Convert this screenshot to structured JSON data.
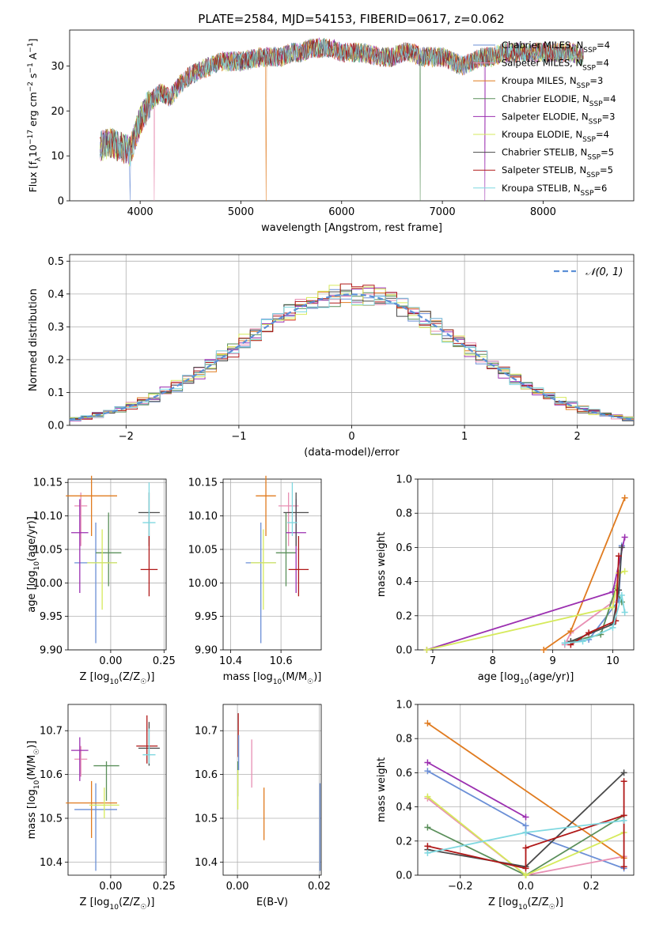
{
  "title": "PLATE=2584, MJD=54153, FIBERID=0617, z=0.062",
  "colors": {
    "c1": "#6b8fd6",
    "c2": "#e88fb3",
    "c3": "#e07b1f",
    "c4": "#5a8f5a",
    "c5": "#9b2fb0",
    "c6": "#d6ea5c",
    "c7": "#4a4a4a",
    "c8": "#b01818",
    "c9": "#7fd8e0",
    "gauss": "#5b8fd6"
  },
  "chart_data": [
    {
      "id": "spectrum",
      "type": "line",
      "xlabel": "wavelength [Angstrom, rest frame]",
      "ylabel": "Flux [f_λ 10^-17 erg cm^-2 s^-1 A^-1]",
      "xlim": [
        3300,
        8900
      ],
      "ylim": [
        0,
        38
      ],
      "xticks": [
        4000,
        5000,
        6000,
        7000,
        8000
      ],
      "yticks": [
        0,
        10,
        20,
        30
      ],
      "grid": false,
      "legend_position": "top-right",
      "continuum": {
        "x": [
          3600,
          3700,
          3800,
          3900,
          4000,
          4100,
          4200,
          4300,
          4400,
          4500,
          4600,
          4700,
          4800,
          4900,
          5000,
          5100,
          5200,
          5300,
          5400,
          5500,
          5600,
          5700,
          5800,
          5900,
          6000,
          6100,
          6200,
          6300,
          6400,
          6500,
          6600,
          6700,
          6800,
          6900,
          7000,
          7100,
          7200,
          7300,
          7400,
          7500,
          7600,
          7700,
          7800,
          7900,
          8000,
          8100,
          8200,
          8300,
          8400
        ],
        "y": [
          12,
          13,
          12,
          11,
          18,
          22,
          24,
          23,
          26,
          28,
          29,
          30,
          31,
          31,
          31,
          31.5,
          32,
          32,
          32,
          33,
          33,
          34,
          34,
          34,
          33,
          33,
          33,
          32.5,
          32,
          32,
          33,
          33,
          32,
          32,
          32,
          31,
          30,
          31,
          32,
          32,
          33,
          33,
          33,
          33,
          33,
          33,
          33,
          33,
          32
        ]
      },
      "drops": [
        {
          "x": 3900,
          "y": 0
        },
        {
          "x": 4140,
          "y": 0
        },
        {
          "x": 5250,
          "y": 0
        },
        {
          "x": 6780,
          "y": 0
        },
        {
          "x": 7420,
          "y": 0
        }
      ],
      "series": [
        {
          "name": "Chabrier MILES, N_SSP=4",
          "color_key": "c1"
        },
        {
          "name": "Salpeter MILES, N_SSP=4",
          "color_key": "c2"
        },
        {
          "name": "Kroupa MILES, N_SSP=3",
          "color_key": "c3"
        },
        {
          "name": "Chabrier ELODIE, N_SSP=4",
          "color_key": "c4"
        },
        {
          "name": "Salpeter ELODIE, N_SSP=3",
          "color_key": "c5"
        },
        {
          "name": "Kroupa ELODIE, N_SSP=4",
          "color_key": "c6"
        },
        {
          "name": "Chabrier STELIB, N_SSP=5",
          "color_key": "c7"
        },
        {
          "name": "Salpeter STELIB, N_SSP=5",
          "color_key": "c8"
        },
        {
          "name": "Kroupa STELIB, N_SSP=6",
          "color_key": "c9"
        }
      ]
    },
    {
      "id": "residuals",
      "type": "line",
      "xlabel": "(data-model)/error",
      "ylabel": "Normed distribution",
      "xlim": [
        -2.5,
        2.5
      ],
      "ylim": [
        0,
        0.52
      ],
      "xticks": [
        -2,
        -1,
        0,
        1,
        2
      ],
      "yticks": [
        0.0,
        0.1,
        0.2,
        0.3,
        0.4,
        0.5
      ],
      "grid": true,
      "legend_position": "top-right",
      "gauss_label": "𝒩(0, 1)",
      "bin_width": 0.1,
      "bin_start": -2.5
    },
    {
      "id": "age_vs_Z",
      "type": "scatter",
      "xlabel": "Z [log10(Z/Z☉)]",
      "ylabel": "age [log10(age/yr)]",
      "xlim": [
        -0.2,
        0.26
      ],
      "ylim": [
        9.9,
        10.155
      ],
      "xticks": [
        -0.25,
        0.0,
        0.25
      ],
      "yticks": [
        9.9,
        9.95,
        10.0,
        10.05,
        10.1,
        10.15
      ],
      "grid": true,
      "points": [
        {
          "color_key": "c1",
          "x": -0.07,
          "xerr": 0.1,
          "y": 10.03,
          "yerr": [
            0.12,
            0.06
          ]
        },
        {
          "color_key": "c2",
          "x": -0.14,
          "xerr": 0.03,
          "y": 10.115,
          "yerr": [
            0.06,
            0.02
          ]
        },
        {
          "color_key": "c3",
          "x": -0.09,
          "xerr": 0.12,
          "y": 10.13,
          "yerr": [
            0.06,
            0.03
          ]
        },
        {
          "color_key": "c4",
          "x": -0.01,
          "xerr": 0.06,
          "y": 10.045,
          "yerr": [
            0.05,
            0.06
          ]
        },
        {
          "color_key": "c5",
          "x": -0.145,
          "xerr": 0.04,
          "y": 10.075,
          "yerr": [
            0.09,
            0.05
          ]
        },
        {
          "color_key": "c6",
          "x": -0.04,
          "xerr": 0.07,
          "y": 10.03,
          "yerr": [
            0.07,
            0.05
          ]
        },
        {
          "color_key": "c7",
          "x": 0.18,
          "xerr": 0.05,
          "y": 10.105,
          "yerr": [
            0.05,
            0.03
          ]
        },
        {
          "color_key": "c8",
          "x": 0.18,
          "xerr": 0.04,
          "y": 10.02,
          "yerr": [
            0.04,
            0.05
          ]
        },
        {
          "color_key": "c9",
          "x": 0.18,
          "xerr": 0.03,
          "y": 10.09,
          "yerr": [
            0.02,
            0.06
          ]
        }
      ]
    },
    {
      "id": "age_vs_mass",
      "type": "scatter",
      "xlabel": "mass [log10(M/M☉)]",
      "ylabel": "",
      "xlim": [
        10.37,
        10.76
      ],
      "ylim": [
        9.9,
        10.155
      ],
      "xticks": [
        10.4,
        10.6
      ],
      "yticks": [
        9.9,
        9.95,
        10.0,
        10.05,
        10.1,
        10.15
      ],
      "grid": true,
      "points": [
        {
          "color_key": "c1",
          "x": 10.52,
          "xerr": 0.06,
          "y": 10.03,
          "yerr": [
            0.12,
            0.06
          ]
        },
        {
          "color_key": "c2",
          "x": 10.63,
          "xerr": 0.04,
          "y": 10.115,
          "yerr": [
            0.06,
            0.02
          ]
        },
        {
          "color_key": "c3",
          "x": 10.54,
          "xerr": 0.04,
          "y": 10.13,
          "yerr": [
            0.06,
            0.03
          ]
        },
        {
          "color_key": "c4",
          "x": 10.62,
          "xerr": 0.04,
          "y": 10.045,
          "yerr": [
            0.05,
            0.06
          ]
        },
        {
          "color_key": "c5",
          "x": 10.66,
          "xerr": 0.04,
          "y": 10.075,
          "yerr": [
            0.09,
            0.05
          ]
        },
        {
          "color_key": "c6",
          "x": 10.53,
          "xerr": 0.05,
          "y": 10.03,
          "yerr": [
            0.07,
            0.05
          ]
        },
        {
          "color_key": "c7",
          "x": 10.66,
          "xerr": 0.05,
          "y": 10.105,
          "yerr": [
            0.05,
            0.03
          ]
        },
        {
          "color_key": "c8",
          "x": 10.67,
          "xerr": 0.04,
          "y": 10.02,
          "yerr": [
            0.04,
            0.05
          ]
        },
        {
          "color_key": "c9",
          "x": 10.645,
          "xerr": 0.02,
          "y": 10.09,
          "yerr": [
            0.02,
            0.06
          ]
        }
      ]
    },
    {
      "id": "weight_vs_age",
      "type": "line",
      "xlabel": "age [log10(age/yr)]",
      "ylabel": "mass weight",
      "xlim": [
        6.75,
        10.35
      ],
      "ylim": [
        0,
        1
      ],
      "xticks": [
        7,
        8,
        9,
        10
      ],
      "yticks": [
        0.0,
        0.2,
        0.4,
        0.6,
        0.8,
        1.0
      ],
      "grid": true,
      "series": [
        {
          "color_key": "c1",
          "x": [
            9.2,
            9.6,
            10.1,
            10.15
          ],
          "y": [
            0.04,
            0.06,
            0.29,
            0.61
          ]
        },
        {
          "color_key": "c2",
          "x": [
            9.2,
            9.3,
            10.0,
            10.1
          ],
          "y": [
            0.03,
            0.1,
            0.28,
            0.45
          ]
        },
        {
          "color_key": "c3",
          "x": [
            8.85,
            9.3,
            10.2
          ],
          "y": [
            0.0,
            0.11,
            0.89
          ]
        },
        {
          "color_key": "c4",
          "x": [
            9.3,
            9.8,
            10.05,
            10.15
          ],
          "y": [
            0.05,
            0.09,
            0.36,
            0.28
          ]
        },
        {
          "color_key": "c5",
          "x": [
            6.9,
            10.0,
            10.2
          ],
          "y": [
            0.0,
            0.34,
            0.66
          ]
        },
        {
          "color_key": "c6",
          "x": [
            6.9,
            10.0,
            10.1,
            10.2
          ],
          "y": [
            0.0,
            0.25,
            0.45,
            0.46
          ]
        },
        {
          "color_key": "c7",
          "x": [
            9.3,
            10.0,
            10.1,
            10.15
          ],
          "y": [
            0.05,
            0.15,
            0.35,
            0.6
          ]
        },
        {
          "color_key": "c8",
          "x": [
            9.3,
            9.6,
            10.05,
            10.1
          ],
          "y": [
            0.03,
            0.1,
            0.17,
            0.55
          ]
        },
        {
          "color_key": "c9",
          "x": [
            9.2,
            9.5,
            10.0,
            10.15,
            10.2
          ],
          "y": [
            0.04,
            0.05,
            0.13,
            0.32,
            0.22
          ]
        }
      ]
    },
    {
      "id": "mass_vs_Z",
      "type": "scatter",
      "xlabel": "Z [log10(Z/Z☉)]",
      "ylabel": "mass [log10(M/M☉)]",
      "xlim": [
        -0.2,
        0.26
      ],
      "ylim": [
        10.37,
        10.76
      ],
      "xticks": [
        -0.25,
        0.0,
        0.25
      ],
      "yticks": [
        10.4,
        10.5,
        10.6,
        10.7
      ],
      "grid": true,
      "points": [
        {
          "color_key": "c1",
          "x": -0.07,
          "xerr": 0.1,
          "y": 10.52,
          "yerr": [
            0.14,
            0.06
          ]
        },
        {
          "color_key": "c2",
          "x": -0.14,
          "xerr": 0.03,
          "y": 10.635,
          "yerr": [
            0.04,
            0.03
          ]
        },
        {
          "color_key": "c3",
          "x": -0.09,
          "xerr": 0.12,
          "y": 10.535,
          "yerr": [
            0.08,
            0.05
          ]
        },
        {
          "color_key": "c4",
          "x": -0.02,
          "xerr": 0.06,
          "y": 10.62,
          "yerr": [
            0.08,
            0.01
          ]
        },
        {
          "color_key": "c5",
          "x": -0.145,
          "xerr": 0.04,
          "y": 10.655,
          "yerr": [
            0.07,
            0.03
          ]
        },
        {
          "color_key": "c6",
          "x": -0.03,
          "xerr": 0.07,
          "y": 10.53,
          "yerr": [
            0.03,
            0.04
          ]
        },
        {
          "color_key": "c7",
          "x": 0.18,
          "xerr": 0.05,
          "y": 10.66,
          "yerr": [
            0.04,
            0.06
          ]
        },
        {
          "color_key": "c8",
          "x": 0.17,
          "xerr": 0.05,
          "y": 10.665,
          "yerr": [
            0.04,
            0.07
          ]
        },
        {
          "color_key": "c9",
          "x": 0.18,
          "xerr": 0.03,
          "y": 10.645,
          "yerr": [
            0.02,
            0.06
          ]
        }
      ]
    },
    {
      "id": "mass_vs_ebv",
      "type": "scatter",
      "xlabel": "E(B-V)",
      "ylabel": "",
      "xlim": [
        -0.0035,
        0.0205
      ],
      "ylim": [
        10.37,
        10.76
      ],
      "xticks": [
        0.0,
        0.02
      ],
      "yticks": [
        10.4,
        10.5,
        10.6,
        10.7
      ],
      "grid": true,
      "points": [
        {
          "color_key": "c1",
          "x": 0.0202,
          "xerr": 0,
          "y": 10.52,
          "yerr": [
            0.14,
            0.06
          ]
        },
        {
          "color_key": "c2",
          "x": 0.0035,
          "xerr": 0,
          "y": 10.63,
          "yerr": [
            0.06,
            0.05
          ]
        },
        {
          "color_key": "c3",
          "x": 0.0065,
          "xerr": 0,
          "y": 10.51,
          "yerr": [
            0.06,
            0.06
          ]
        },
        {
          "color_key": "c4",
          "x": 0.0001,
          "xerr": 0,
          "y": 10.59,
          "yerr": [
            0.04,
            0.04
          ]
        },
        {
          "color_key": "c6",
          "x": 0.0001,
          "xerr": 0,
          "y": 10.55,
          "yerr": [
            0.03,
            0.06
          ]
        },
        {
          "color_key": "c8",
          "x": 0.0002,
          "xerr": 0,
          "y": 10.67,
          "yerr": [
            0.03,
            0.07
          ]
        },
        {
          "color_key": "c1",
          "x": 0.0003,
          "xerr": 0,
          "y": 10.64,
          "yerr": [
            0.03,
            0.05
          ]
        }
      ]
    },
    {
      "id": "weight_vs_Z",
      "type": "line",
      "xlabel": "Z [log10(Z/Z☉)]",
      "ylabel": "mass weight",
      "xlim": [
        -0.33,
        0.33
      ],
      "ylim": [
        0,
        1
      ],
      "xticks": [
        -0.2,
        0.0,
        0.2
      ],
      "yticks": [
        0.0,
        0.2,
        0.4,
        0.6,
        0.8,
        1.0
      ],
      "grid": true,
      "series": [
        {
          "color_key": "c1",
          "x": [
            -0.3,
            0.0,
            0.0,
            0.3
          ],
          "y": [
            0.61,
            0.29,
            0.25,
            0.04
          ]
        },
        {
          "color_key": "c2",
          "x": [
            -0.3,
            0.0,
            0.3
          ],
          "y": [
            0.45,
            0.0,
            0.11
          ]
        },
        {
          "color_key": "c3",
          "x": [
            -0.3,
            0.3
          ],
          "y": [
            0.89,
            0.1
          ]
        },
        {
          "color_key": "c4",
          "x": [
            -0.3,
            0.0,
            0.3
          ],
          "y": [
            0.28,
            0.0,
            0.35
          ]
        },
        {
          "color_key": "c5",
          "x": [
            -0.3,
            0.0
          ],
          "y": [
            0.66,
            0.34
          ]
        },
        {
          "color_key": "c6",
          "x": [
            -0.3,
            0.0,
            0.3
          ],
          "y": [
            0.46,
            0.0,
            0.25
          ]
        },
        {
          "color_key": "c7",
          "x": [
            -0.3,
            0.0,
            0.3
          ],
          "y": [
            0.15,
            0.05,
            0.6
          ]
        },
        {
          "color_key": "c8",
          "x": [
            -0.3,
            0.0,
            0.0,
            0.3,
            0.3,
            0.3
          ],
          "y": [
            0.17,
            0.04,
            0.16,
            0.35,
            0.55,
            0.05
          ]
        },
        {
          "color_key": "c9",
          "x": [
            -0.3,
            0.0,
            0.3
          ],
          "y": [
            0.13,
            0.25,
            0.32
          ]
        }
      ]
    }
  ]
}
